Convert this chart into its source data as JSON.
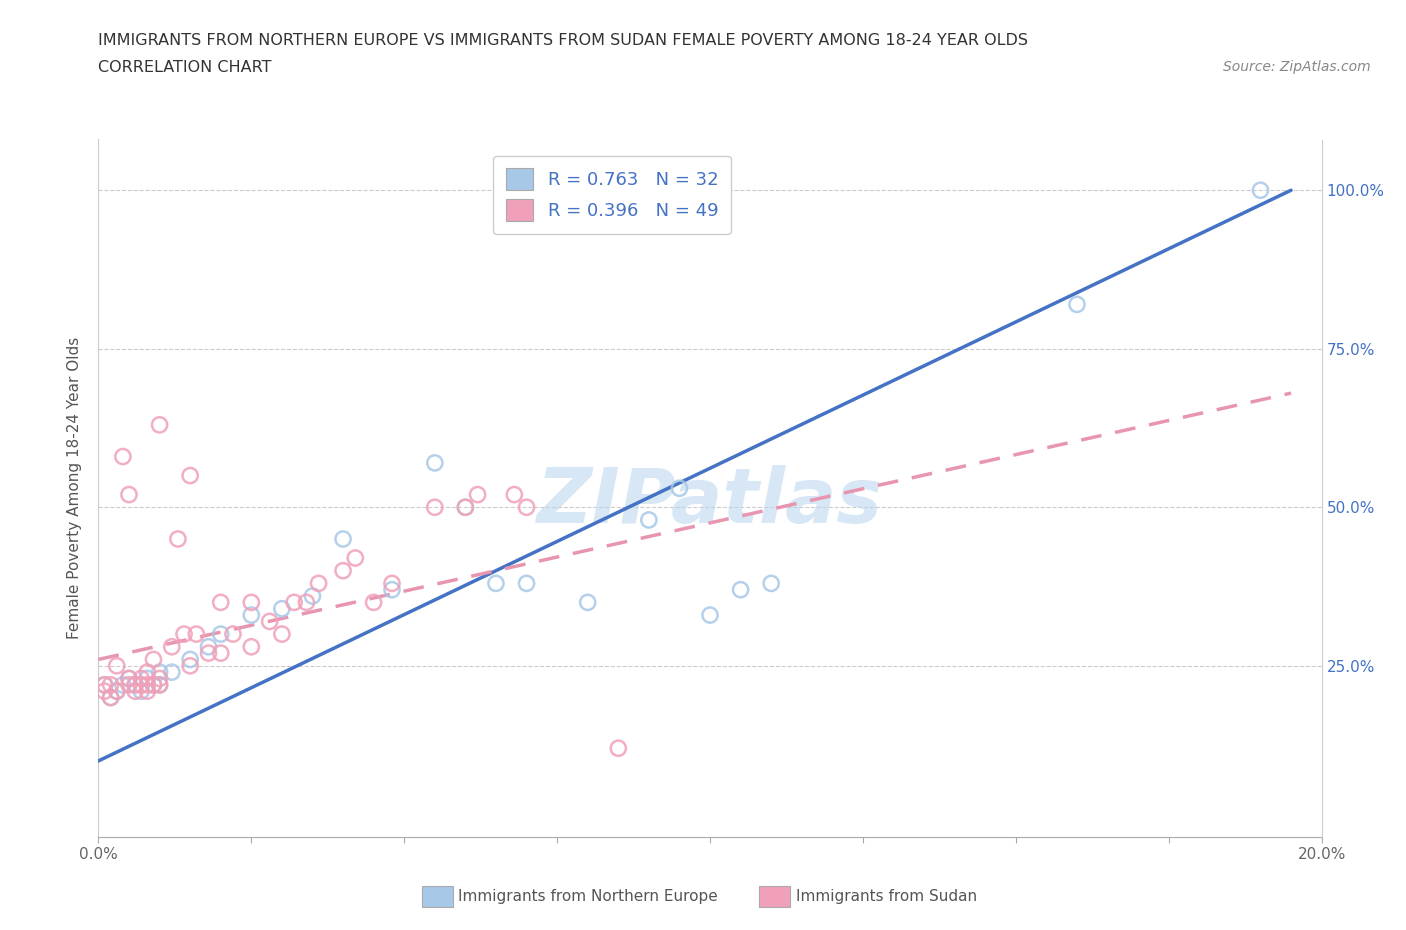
{
  "title_line1": "IMMIGRANTS FROM NORTHERN EUROPE VS IMMIGRANTS FROM SUDAN FEMALE POVERTY AMONG 18-24 YEAR OLDS",
  "title_line2": "CORRELATION CHART",
  "source_text": "Source: ZipAtlas.com",
  "ylabel": "Female Poverty Among 18-24 Year Olds",
  "xlim": [
    0.0,
    0.2
  ],
  "ylim": [
    -0.02,
    1.08
  ],
  "r_blue": 0.763,
  "n_blue": 32,
  "r_pink": 0.396,
  "n_pink": 49,
  "color_blue": "#A8C8E8",
  "color_pink": "#F0A0B8",
  "color_blue_line": "#4472C4",
  "color_pink_line": "#E896B0",
  "legend_label_blue": "Immigrants from Northern Europe",
  "legend_label_pink": "Immigrants from Sudan",
  "watermark": "ZIPatlas",
  "blue_scatter_x": [
    0.001,
    0.002,
    0.003,
    0.004,
    0.005,
    0.006,
    0.007,
    0.008,
    0.009,
    0.01,
    0.01,
    0.012,
    0.015,
    0.018,
    0.02,
    0.025,
    0.03,
    0.035,
    0.04,
    0.048,
    0.055,
    0.06,
    0.065,
    0.07,
    0.08,
    0.09,
    0.095,
    0.1,
    0.105,
    0.11,
    0.16,
    0.19
  ],
  "blue_scatter_y": [
    0.22,
    0.2,
    0.21,
    0.22,
    0.23,
    0.22,
    0.21,
    0.23,
    0.22,
    0.22,
    0.24,
    0.24,
    0.26,
    0.28,
    0.3,
    0.33,
    0.34,
    0.36,
    0.45,
    0.37,
    0.57,
    0.5,
    0.38,
    0.38,
    0.35,
    0.48,
    0.53,
    0.33,
    0.37,
    0.38,
    0.82,
    1.0
  ],
  "pink_scatter_x": [
    0.001,
    0.001,
    0.002,
    0.002,
    0.003,
    0.003,
    0.004,
    0.005,
    0.005,
    0.005,
    0.006,
    0.006,
    0.007,
    0.007,
    0.008,
    0.008,
    0.008,
    0.009,
    0.009,
    0.01,
    0.01,
    0.01,
    0.012,
    0.013,
    0.014,
    0.015,
    0.015,
    0.016,
    0.018,
    0.02,
    0.02,
    0.022,
    0.025,
    0.025,
    0.028,
    0.03,
    0.032,
    0.034,
    0.036,
    0.04,
    0.042,
    0.045,
    0.048,
    0.055,
    0.06,
    0.062,
    0.068,
    0.07,
    0.085
  ],
  "pink_scatter_y": [
    0.21,
    0.22,
    0.2,
    0.22,
    0.21,
    0.25,
    0.58,
    0.22,
    0.23,
    0.52,
    0.21,
    0.22,
    0.22,
    0.23,
    0.21,
    0.22,
    0.24,
    0.22,
    0.26,
    0.22,
    0.23,
    0.63,
    0.28,
    0.45,
    0.3,
    0.25,
    0.55,
    0.3,
    0.27,
    0.27,
    0.35,
    0.3,
    0.28,
    0.35,
    0.32,
    0.3,
    0.35,
    0.35,
    0.38,
    0.4,
    0.42,
    0.35,
    0.38,
    0.5,
    0.5,
    0.52,
    0.52,
    0.5,
    0.12
  ],
  "blue_line_x0": 0.0,
  "blue_line_y0": 0.1,
  "blue_line_x1": 0.195,
  "blue_line_y1": 1.0,
  "pink_line_x0": 0.0,
  "pink_line_y0": 0.26,
  "pink_line_x1": 0.195,
  "pink_line_y1": 0.68
}
